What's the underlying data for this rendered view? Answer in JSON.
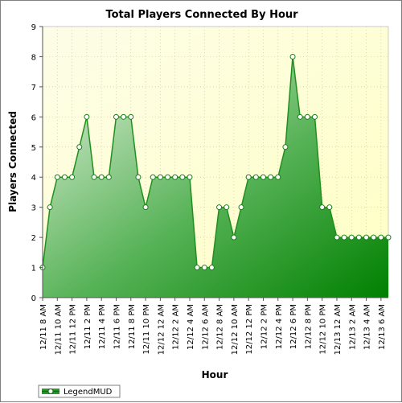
{
  "chart_data": {
    "type": "area",
    "title": "Total Players Connected By Hour",
    "xlabel": "Hour",
    "ylabel": "Players Connected",
    "ylim": [
      0,
      9
    ],
    "yticks": [
      0,
      1,
      2,
      3,
      4,
      5,
      6,
      7,
      8,
      9
    ],
    "grid": true,
    "legend_position": "bottom-left",
    "colors": {
      "line": "#1f8f1f",
      "fill_top": "#e2f0dc",
      "fill_bottom": "#008000",
      "plot_bg_top": "#fdfde8",
      "plot_bg_bottom": "#ffffc8"
    },
    "x_tick_labels": [
      "12/11 8 AM",
      "12/11 10 AM",
      "12/11 12 PM",
      "12/11 2 PM",
      "12/11 4 PM",
      "12/11 6 PM",
      "12/11 8 PM",
      "12/11 10 PM",
      "12/12 12 AM",
      "12/12 2 AM",
      "12/12 4 AM",
      "12/12 6 AM",
      "12/12 8 AM",
      "12/12 10 AM",
      "12/12 12 PM",
      "12/12 2 PM",
      "12/12 4 PM",
      "12/12 6 PM",
      "12/12 8 PM",
      "12/12 10 PM",
      "12/13 12 AM",
      "12/13 2 AM",
      "12/13 4 AM",
      "12/13 6 AM"
    ],
    "series": [
      {
        "name": "LegendMUD",
        "values": [
          1,
          3,
          4,
          4,
          4,
          5,
          6,
          4,
          4,
          4,
          6,
          6,
          6,
          4,
          3,
          4,
          4,
          4,
          4,
          4,
          4,
          1,
          1,
          1,
          3,
          3,
          2,
          3,
          4,
          4,
          4,
          4,
          4,
          5,
          8,
          6,
          6,
          6,
          3,
          3,
          2,
          2,
          2,
          2,
          2,
          2,
          2,
          2
        ]
      }
    ]
  }
}
